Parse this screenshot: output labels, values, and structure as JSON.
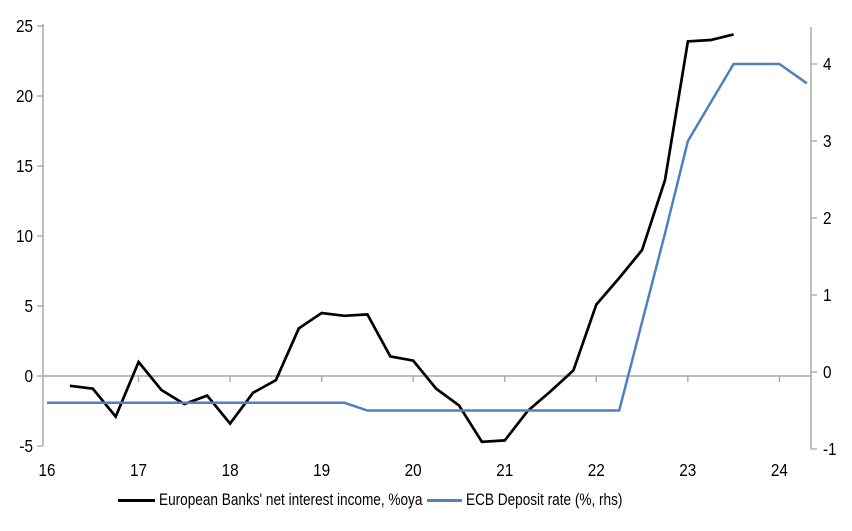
{
  "chart_data": {
    "type": "line",
    "title": "",
    "x_axis": {
      "tick_labels": [
        "16",
        "17",
        "18",
        "19",
        "20",
        "21",
        "22",
        "23",
        "24"
      ],
      "tick_values": [
        16,
        17,
        18,
        19,
        20,
        21,
        22,
        23,
        24
      ],
      "range": [
        16,
        24.35
      ],
      "sub_tick_years": [
        17,
        18,
        19,
        20,
        21,
        22,
        23,
        24
      ]
    },
    "y_axis_left": {
      "tick_values": [
        25,
        20,
        15,
        10,
        5,
        0,
        -5
      ],
      "range": [
        -5,
        25
      ]
    },
    "y_axis_right": {
      "tick_values": [
        4,
        3,
        2,
        1,
        0,
        -1
      ],
      "range": [
        -1,
        4.5
      ]
    },
    "grid": "zero-line-only",
    "legend_position": "bottom",
    "colors": {
      "nii_line": "#000000",
      "ecb_line": "#4f81bd",
      "axis_gray": "#a6a6a6"
    },
    "series": [
      {
        "name": "European Banks' net interest income, %oya",
        "axis": "left",
        "color": "#000000",
        "points": [
          [
            16.25,
            -0.7
          ],
          [
            16.5,
            -0.9
          ],
          [
            16.75,
            -2.9
          ],
          [
            17.0,
            1.0
          ],
          [
            17.25,
            -1.0
          ],
          [
            17.5,
            -2.0
          ],
          [
            17.75,
            -1.4
          ],
          [
            18.0,
            -3.4
          ],
          [
            18.25,
            -1.2
          ],
          [
            18.5,
            -0.3
          ],
          [
            18.75,
            3.4
          ],
          [
            19.0,
            4.5
          ],
          [
            19.25,
            4.3
          ],
          [
            19.5,
            4.4
          ],
          [
            19.75,
            1.4
          ],
          [
            20.0,
            1.1
          ],
          [
            20.25,
            -0.9
          ],
          [
            20.5,
            -2.1
          ],
          [
            20.75,
            -4.7
          ],
          [
            21.0,
            -4.6
          ],
          [
            21.25,
            -2.5
          ],
          [
            21.5,
            -1.1
          ],
          [
            21.75,
            0.4
          ],
          [
            22.0,
            5.1
          ],
          [
            22.25,
            7.0
          ],
          [
            22.5,
            9.0
          ],
          [
            22.75,
            14.0
          ],
          [
            23.0,
            23.9
          ],
          [
            23.25,
            24.0
          ],
          [
            23.5,
            24.4
          ]
        ]
      },
      {
        "name": "ECB Deposit rate (%, rhs)",
        "axis": "right",
        "color": "#4f81bd",
        "points": [
          [
            16.0,
            -0.4
          ],
          [
            19.25,
            -0.4
          ],
          [
            19.5,
            -0.5
          ],
          [
            22.25,
            -0.5
          ],
          [
            22.5,
            0.65
          ],
          [
            22.75,
            1.8
          ],
          [
            23.0,
            3.0
          ],
          [
            23.25,
            3.5
          ],
          [
            23.5,
            4.0
          ],
          [
            24.0,
            4.0
          ],
          [
            24.3,
            3.75
          ]
        ]
      }
    ]
  },
  "legend": {
    "items": [
      {
        "label": "European Banks' net interest income, %oya",
        "color": "#000000"
      },
      {
        "label": "ECB Deposit rate (%, rhs)",
        "color": "#4f81bd"
      }
    ]
  }
}
